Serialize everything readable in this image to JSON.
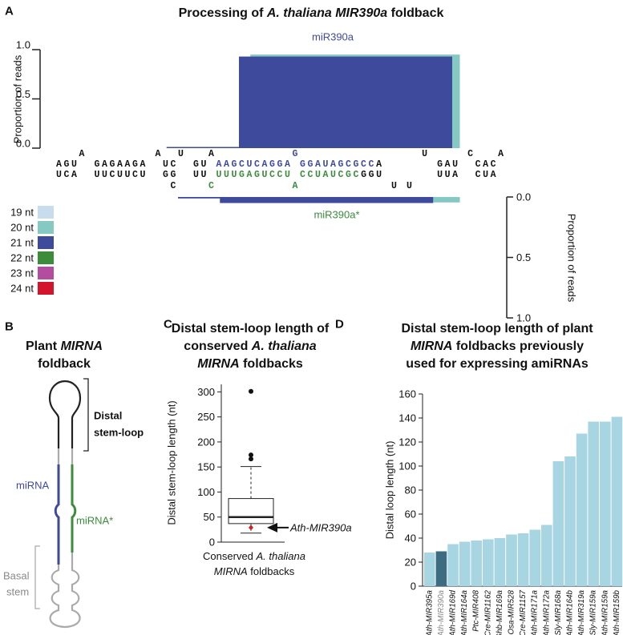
{
  "chart_data": [
    {
      "type": "foldback",
      "panel_label": "A",
      "title": [
        "Processing of ",
        {
          "text": "A. thaliana MIR390a",
          "italic": true
        },
        " foldback"
      ],
      "ylabel": "Proportion of reads",
      "ylim": [
        0,
        1
      ],
      "yticks": [
        {
          "value": 0,
          "label": "0.0"
        },
        {
          "value": 0.5,
          "label": "0.5"
        },
        {
          "value": 1,
          "label": "1.0"
        }
      ],
      "sequence": [
        [
          {
            "text": "   A         A  U   A",
            "color": "#111111"
          },
          {
            "text": "          G          ",
            "color": "#3e4a9c"
          },
          {
            "text": "      U     C   A",
            "color": "#111111"
          }
        ],
        [
          {
            "text": "AGU  GAGAAGA  UC  GU ",
            "color": "#111111"
          },
          {
            "text": "AAGCUCAGGA GGAUAGCGCC",
            "color": "#3e4a9c"
          },
          {
            "text": "A       GAU  CAC",
            "color": "#111111"
          }
        ],
        [
          {
            "text": "UCA  UUCUUCU  GG  UU ",
            "color": "#111111"
          },
          {
            "text": "UUUGAGUCCU CCUAUCGC",
            "color": "#3c8c3c"
          },
          {
            "text": "GGU       UUA  CUA",
            "color": "#111111"
          }
        ],
        [
          {
            "text": "               C    ",
            "color": "#111111"
          },
          {
            "text": "C          A",
            "color": "#3c8c3c"
          },
          {
            "text": "            U U",
            "color": "#111111"
          }
        ]
      ],
      "guide_label": {
        "text": "miR390a",
        "color": "#3e4a9c"
      },
      "star_label": {
        "text": "miR390a*",
        "color": "#3c8c3c"
      },
      "size_classes": [
        {
          "name": "19 nt",
          "color": "#c9dced"
        },
        {
          "name": "20 nt",
          "color": "#86c9c2"
        },
        {
          "name": "21 nt",
          "color": "#3e4a9c"
        },
        {
          "name": "22 nt",
          "color": "#3c8c3c"
        },
        {
          "name": "23 nt",
          "color": "#b44da0"
        },
        {
          "name": "24 nt",
          "color": "#d4142c"
        }
      ],
      "upper_reads": [
        {
          "start": 25.5,
          "end": 53,
          "value": 0.95,
          "color": "#86c9c2"
        },
        {
          "start": 24,
          "end": 52,
          "value": 0.93,
          "color": "#3e4a9c"
        },
        {
          "start": 14.5,
          "end": 52,
          "value": 0.012,
          "color": "#3e4a9c"
        }
      ],
      "lower_reads": [
        {
          "start": 22,
          "end": 53,
          "value": 0.045,
          "color": "#86c9c2"
        },
        {
          "start": 21.5,
          "end": 49.5,
          "value": 0.05,
          "color": "#3e4a9c"
        },
        {
          "start": 16,
          "end": 43,
          "value": 0.012,
          "color": "#3e4a9c"
        }
      ]
    },
    {
      "type": "box",
      "panel_label": "C",
      "title": [
        [
          "Distal stem-loop length of"
        ],
        [
          "conserved ",
          {
            "text": "A. thaliana",
            "italic": true
          }
        ],
        [
          {
            "text": "MIRNA",
            "italic": true
          },
          " foldbacks"
        ]
      ],
      "ylabel": "Distal stem-loop length (nt)",
      "xlabel": [
        [
          "Conserved ",
          {
            "text": "A. thaliana",
            "italic": true
          }
        ],
        [
          {
            "text": "MIRNA",
            "italic": true
          },
          " foldbacks"
        ]
      ],
      "ylim": [
        0,
        315
      ],
      "yticks": [
        0,
        50,
        100,
        150,
        200,
        250,
        300
      ],
      "box": {
        "whislo": 18,
        "q1": 37,
        "med": 50,
        "q3": 87,
        "whishi": 151,
        "fliers": [
          166,
          174,
          301
        ]
      },
      "highlight": {
        "value": 29,
        "label": "Ath-MIR390a",
        "color": "#cc2222"
      }
    },
    {
      "type": "bar",
      "panel_label": "D",
      "title": [
        [
          "Distal stem-loop length of plant"
        ],
        [
          {
            "text": "MIRNA",
            "italic": true
          },
          " foldbacks previously"
        ],
        [
          "used for expressing amiRNAs"
        ]
      ],
      "ylabel": "Distal loop length (nt)",
      "categories": [
        "Ath-MIR395a",
        "Ath-MIR390a",
        "Ath-MIR169d",
        "Ath-MIR164a",
        "Ptc-MIR408",
        "Cre-MIR1162",
        "Ghb-MIR169a",
        "Osa-MIR528",
        "Cre-MIR1157",
        "Ath-MIR171a",
        "Ath-MIR172a",
        "Sly-MIR168a",
        "Ath-MIR164b",
        "Ath-MIR319a",
        "Sly-MIR159a",
        "Ath-MIR159a",
        "Ath-MIR159b"
      ],
      "values": [
        28,
        29,
        35,
        37,
        38,
        39,
        40,
        43,
        44,
        47,
        51,
        104,
        108,
        127,
        137,
        137,
        141
      ],
      "colors": [
        "#a8d5e2",
        "#3d6b82",
        "#a8d5e2",
        "#a8d5e2",
        "#a8d5e2",
        "#a8d5e2",
        "#a8d5e2",
        "#a8d5e2",
        "#a8d5e2",
        "#a8d5e2",
        "#a8d5e2",
        "#a8d5e2",
        "#a8d5e2",
        "#a8d5e2",
        "#a8d5e2",
        "#a8d5e2",
        "#a8d5e2"
      ],
      "label_colors": [
        "#111111",
        "#888888",
        "#111111",
        "#111111",
        "#111111",
        "#111111",
        "#111111",
        "#111111",
        "#111111",
        "#111111",
        "#111111",
        "#111111",
        "#111111",
        "#111111",
        "#111111",
        "#111111",
        "#111111"
      ],
      "ylim": [
        0,
        160
      ],
      "yticks": [
        0,
        20,
        40,
        60,
        80,
        100,
        120,
        140,
        160
      ]
    }
  ],
  "diagram": {
    "panel_label": "B",
    "title": [
      [
        "Plant ",
        {
          "text": "MIRNA",
          "italic": true
        }
      ],
      [
        "foldback"
      ]
    ],
    "distal_label": [
      "Distal",
      "stem-loop"
    ],
    "guide_label": "miRNA",
    "star_label": "miRNA*",
    "basal_label": [
      "Basal",
      "stem"
    ]
  }
}
